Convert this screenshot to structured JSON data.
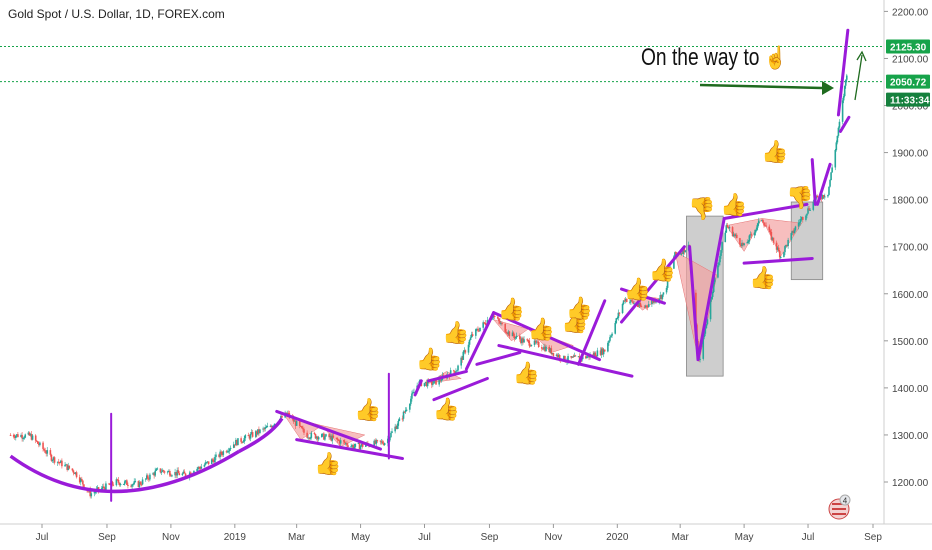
{
  "header": {
    "symbol_title": "Gold Spot / U.S. Dollar, 1D, FOREX.com"
  },
  "annotation": {
    "text": "On the way to",
    "hand_icon": "pointing-hand-up-icon"
  },
  "price_tags": [
    {
      "label": "2125.30",
      "value": 2125.3,
      "color": "#16a34a"
    },
    {
      "label": "2050.72",
      "value": 2050.72,
      "color": "#16a34a"
    },
    {
      "label": "11:33:34",
      "value": 2020,
      "color": "#15803d"
    }
  ],
  "colors": {
    "up": "#26a69a",
    "down": "#ef5350",
    "pattern": "#9a1bd9",
    "arrow": "#1f6b1f",
    "dotted_line": "#16a34a",
    "box_fill": "#bdbdbd",
    "triangle_fill": "#f4a3a3",
    "thumbs_up": "#3b82c4",
    "thumbs_down": "#333333"
  },
  "icons": {
    "thumbs_up": "thumbs-up-icon",
    "thumbs_down": "thumbs-down-icon",
    "flag_badge": "us-flag-badge-icon",
    "badge_count": "4"
  },
  "chart_data": {
    "type": "candlestick",
    "title": "Gold Spot / U.S. Dollar, 1D, FOREX.com",
    "xlabel": "",
    "ylabel": "",
    "ylim": [
      1140,
      2240
    ],
    "x_range": [
      "2018-06-01",
      "2020-09-30"
    ],
    "y_ticks": [
      1200,
      1300,
      1400,
      1500,
      1600,
      1700,
      1800,
      1900,
      2000,
      2100,
      2200
    ],
    "y_tick_labels": [
      "1200.00",
      "1300.00",
      "1400.00",
      "1500.00",
      "1600.00",
      "1700.00",
      "1800.00",
      "1900.00",
      "2000.00",
      "2100.00",
      "2200.00"
    ],
    "x_ticks": [
      {
        "label": "Jul",
        "date": "2018-07-01"
      },
      {
        "label": "Sep",
        "date": "2018-09-01"
      },
      {
        "label": "Nov",
        "date": "2018-11-01"
      },
      {
        "label": "2019",
        "date": "2019-01-01"
      },
      {
        "label": "Mar",
        "date": "2019-03-01"
      },
      {
        "label": "May",
        "date": "2019-05-01"
      },
      {
        "label": "Jul",
        "date": "2019-07-01"
      },
      {
        "label": "Sep",
        "date": "2019-09-01"
      },
      {
        "label": "Nov",
        "date": "2019-11-01"
      },
      {
        "label": "2020",
        "date": "2020-01-01"
      },
      {
        "label": "Mar",
        "date": "2020-03-01"
      },
      {
        "label": "May",
        "date": "2020-05-01"
      },
      {
        "label": "Jul",
        "date": "2020-07-01"
      },
      {
        "label": "Sep",
        "date": "2020-09-01"
      }
    ],
    "price_path": [
      [
        "2018-06-01",
        1300
      ],
      [
        "2018-06-20",
        1298
      ],
      [
        "2018-07-10",
        1252
      ],
      [
        "2018-08-01",
        1222
      ],
      [
        "2018-08-16",
        1175
      ],
      [
        "2018-09-10",
        1200
      ],
      [
        "2018-10-01",
        1195
      ],
      [
        "2018-10-20",
        1225
      ],
      [
        "2018-11-15",
        1215
      ],
      [
        "2018-12-10",
        1245
      ],
      [
        "2019-01-01",
        1283
      ],
      [
        "2019-02-01",
        1315
      ],
      [
        "2019-02-20",
        1345
      ],
      [
        "2019-03-10",
        1300
      ],
      [
        "2019-04-01",
        1295
      ],
      [
        "2019-04-25",
        1275
      ],
      [
        "2019-05-25",
        1285
      ],
      [
        "2019-06-10",
        1340
      ],
      [
        "2019-06-25",
        1410
      ],
      [
        "2019-07-10",
        1410
      ],
      [
        "2019-08-01",
        1440
      ],
      [
        "2019-08-15",
        1510
      ],
      [
        "2019-09-04",
        1555
      ],
      [
        "2019-09-20",
        1515
      ],
      [
        "2019-10-03",
        1500
      ],
      [
        "2019-10-20",
        1490
      ],
      [
        "2019-11-12",
        1460
      ],
      [
        "2019-12-01",
        1465
      ],
      [
        "2019-12-20",
        1480
      ],
      [
        "2020-01-08",
        1590
      ],
      [
        "2020-01-25",
        1570
      ],
      [
        "2020-02-15",
        1600
      ],
      [
        "2020-02-24",
        1680
      ],
      [
        "2020-03-09",
        1700
      ],
      [
        "2020-03-19",
        1455
      ],
      [
        "2020-04-01",
        1610
      ],
      [
        "2020-04-14",
        1745
      ],
      [
        "2020-05-01",
        1700
      ],
      [
        "2020-05-18",
        1760
      ],
      [
        "2020-06-05",
        1680
      ],
      [
        "2020-06-20",
        1745
      ],
      [
        "2020-07-08",
        1800
      ],
      [
        "2020-07-20",
        1815
      ],
      [
        "2020-08-01",
        1975
      ],
      [
        "2020-08-07",
        2070
      ]
    ]
  }
}
